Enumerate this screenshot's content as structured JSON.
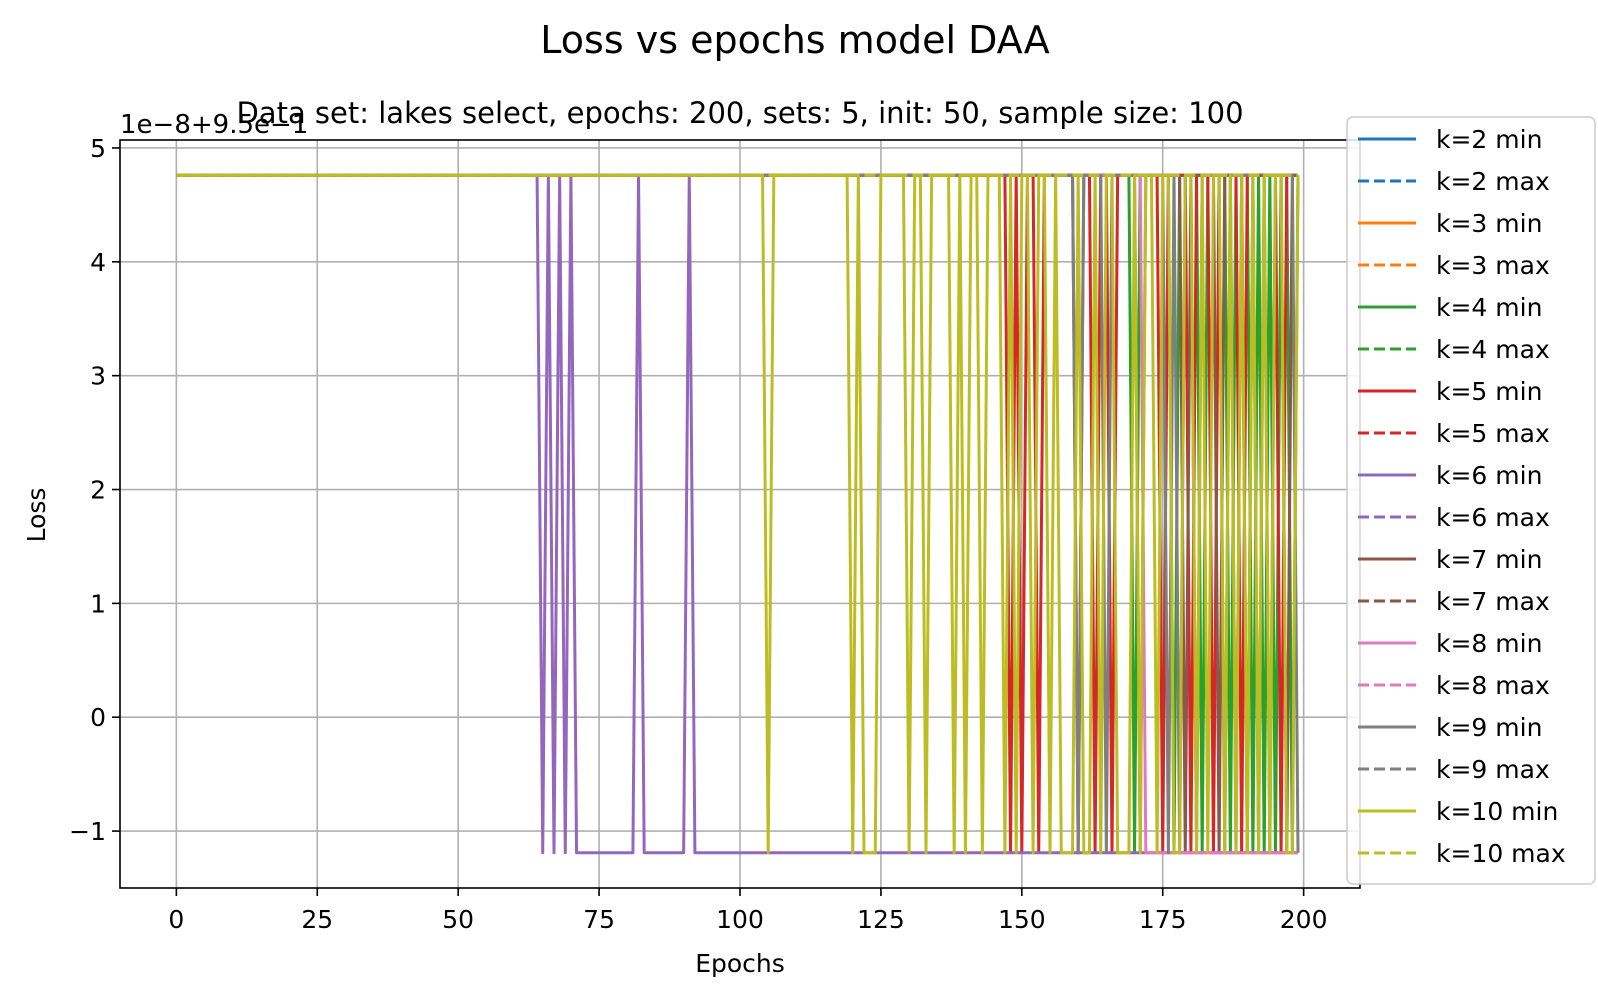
{
  "chart_data": {
    "type": "line",
    "title": "Loss vs epochs model DAA",
    "subtitle": "Data set: lakes select, epochs: 200, sets: 5, init: 50, sample size: 100",
    "offset_label": "1e−8+9.5e−1",
    "xlabel": "Epochs",
    "ylabel": "Loss",
    "xlim": [
      -10,
      210
    ],
    "ylim": [
      -1.5,
      5.07
    ],
    "xticks": [
      0,
      25,
      50,
      75,
      100,
      125,
      150,
      175,
      200
    ],
    "yticks": [
      -1,
      0,
      1,
      2,
      3,
      4,
      5
    ],
    "ytick_labels": [
      "−1",
      "0",
      "1",
      "2",
      "3",
      "4",
      "5"
    ],
    "grid": true,
    "legend_position": "right",
    "high_value": 4.76,
    "low_value": -1.19,
    "series": [
      {
        "name": "k=2 min",
        "color": "#1f77b4",
        "style": "solid",
        "low_epochs": []
      },
      {
        "name": "k=2 max",
        "color": "#1f77b4",
        "style": "dashed",
        "low_epochs": []
      },
      {
        "name": "k=3 min",
        "color": "#ff7f0e",
        "style": "solid",
        "low_epochs": []
      },
      {
        "name": "k=3 max",
        "color": "#ff7f0e",
        "style": "dashed",
        "low_epochs": []
      },
      {
        "name": "k=4 min",
        "color": "#2ca02c",
        "style": "solid",
        "low_epochs": [
          170,
          177,
          182,
          187,
          191,
          193,
          195,
          198
        ]
      },
      {
        "name": "k=4 max",
        "color": "#2ca02c",
        "style": "dashed",
        "low_epochs": []
      },
      {
        "name": "k=5 min",
        "color": "#d62728",
        "style": "solid",
        "low_epochs": [
          148,
          150,
          153,
          160,
          163,
          166,
          175,
          180,
          184,
          189,
          196
        ]
      },
      {
        "name": "k=5 max",
        "color": "#d62728",
        "style": "dashed",
        "low_epochs": []
      },
      {
        "name": "k=6 min",
        "color": "#9467bd",
        "style": "solid",
        "low_epochs": [
          65,
          67,
          69,
          71,
          72,
          73,
          74,
          75,
          76,
          77,
          78,
          79,
          80,
          81,
          83,
          84,
          85,
          86,
          87,
          88,
          89,
          90,
          92,
          93,
          94,
          95,
          96,
          97,
          98,
          99,
          100,
          101,
          102,
          103,
          104,
          105,
          106,
          107,
          108,
          109,
          110,
          111,
          112,
          113,
          114,
          115,
          116,
          117,
          118,
          119,
          120,
          121,
          122,
          123,
          124,
          125,
          126,
          127,
          128,
          129,
          130,
          131,
          132,
          133,
          134,
          135,
          136,
          137,
          138,
          139,
          140,
          141,
          142,
          143,
          144,
          145,
          146,
          147,
          148,
          149,
          150,
          151,
          152,
          153,
          154,
          155,
          156,
          157,
          158,
          159,
          160,
          161,
          162,
          163,
          164,
          165,
          166,
          167,
          168,
          169,
          170,
          171,
          172,
          173,
          174,
          175,
          176,
          177,
          178,
          179,
          180,
          181,
          182,
          183,
          184,
          185,
          186,
          187,
          188,
          189,
          190,
          191,
          192,
          193,
          194,
          195,
          196,
          197,
          198,
          199
        ]
      },
      {
        "name": "k=6 max",
        "color": "#9467bd",
        "style": "dashed",
        "low_epochs": []
      },
      {
        "name": "k=7 min",
        "color": "#8c564b",
        "style": "solid",
        "low_epochs": [
          179,
          185,
          190,
          197
        ]
      },
      {
        "name": "k=7 max",
        "color": "#8c564b",
        "style": "dashed",
        "low_epochs": []
      },
      {
        "name": "k=8 min",
        "color": "#e377c2",
        "style": "solid",
        "low_epochs": [
          172,
          173,
          174,
          175,
          176,
          177,
          178,
          179,
          180,
          181,
          182,
          183,
          184,
          185,
          186,
          187,
          188,
          189,
          190,
          191,
          192,
          193,
          194,
          195,
          196,
          197,
          198,
          199
        ]
      },
      {
        "name": "k=8 max",
        "color": "#e377c2",
        "style": "dashed",
        "low_epochs": []
      },
      {
        "name": "k=9 min",
        "color": "#7f7f7f",
        "style": "solid",
        "low_epochs": [
          160,
          165,
          171,
          176,
          178,
          181,
          186,
          188,
          192,
          194,
          199
        ]
      },
      {
        "name": "k=9 max",
        "color": "#7f7f7f",
        "style": "dashed",
        "low_epochs": []
      },
      {
        "name": "k=10 min",
        "color": "#bcbd22",
        "style": "solid",
        "low_epochs": [
          105,
          120,
          122,
          123,
          124,
          130,
          133,
          138,
          140,
          143,
          147,
          149,
          152,
          155,
          157,
          158,
          159,
          161,
          162,
          164,
          167,
          168,
          169,
          171,
          174,
          177,
          178,
          181,
          183,
          186,
          188,
          190,
          192,
          194,
          197,
          198
        ]
      },
      {
        "name": "k=10 max",
        "color": "#bcbd22",
        "style": "dashed",
        "low_epochs": []
      }
    ]
  }
}
